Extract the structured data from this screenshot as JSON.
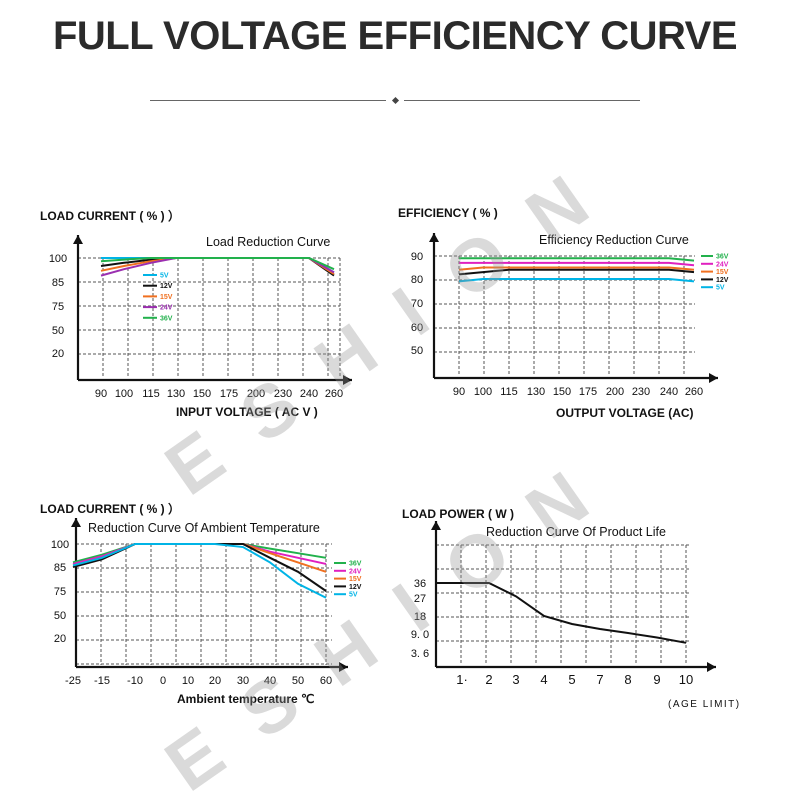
{
  "page": {
    "title": "FULL VOLTAGE EFFICIENCY CURVE",
    "watermark": "ESHION"
  },
  "chart_data": [
    {
      "type": "line",
      "title": "Load Reduction Curve",
      "ylabel": "LOAD CURRENT ( % ) ）",
      "xlabel": "INPUT VOLTAGE ( AC  V )",
      "x_ticks": [
        "90",
        "100",
        "115",
        "130",
        "150",
        "175",
        "200",
        "230",
        "240",
        "260"
      ],
      "y_ticks": [
        "100",
        "85",
        "75",
        "50",
        "20"
      ],
      "grid": true,
      "legend_placement": "inside-left",
      "series": [
        {
          "name": "5V",
          "color": "#00b4e6",
          "values": [
            100,
            100,
            100,
            100,
            100,
            100,
            100,
            100,
            100,
            91
          ]
        },
        {
          "name": "12V",
          "color": "#111111",
          "values": [
            95,
            97,
            99,
            100,
            100,
            100,
            100,
            100,
            100,
            89
          ]
        },
        {
          "name": "15V",
          "color": "#f07020",
          "values": [
            92,
            95,
            98,
            100,
            100,
            100,
            100,
            100,
            100,
            90
          ]
        },
        {
          "name": "24V",
          "color": "#9b2fb0",
          "values": [
            89,
            93,
            97,
            100,
            100,
            100,
            100,
            100,
            100,
            91
          ]
        },
        {
          "name": "36V",
          "color": "#22b14c",
          "values": [
            98,
            99,
            100,
            100,
            100,
            100,
            100,
            100,
            100,
            93
          ]
        }
      ]
    },
    {
      "type": "line",
      "title": "Efficiency Reduction Curve",
      "ylabel": "EFFICIENCY ( % )",
      "xlabel": "OUTPUT VOLTAGE (AC)",
      "x_ticks": [
        "90",
        "100",
        "115",
        "130",
        "150",
        "175",
        "200",
        "230",
        "240",
        "260"
      ],
      "y_ticks": [
        "90",
        "80",
        "70",
        "60",
        "50"
      ],
      "grid": true,
      "legend_placement": "right",
      "series": [
        {
          "name": "36V",
          "color": "#22b14c",
          "values": [
            89,
            89,
            89,
            89,
            89,
            89,
            89,
            89,
            89,
            88
          ]
        },
        {
          "name": "24V",
          "color": "#e020c0",
          "values": [
            87,
            87,
            87,
            87,
            87,
            87,
            87,
            87,
            87,
            86
          ]
        },
        {
          "name": "15V",
          "color": "#f07020",
          "values": [
            84,
            85,
            85,
            85,
            85,
            85,
            85,
            85,
            85,
            84
          ]
        },
        {
          "name": "12V",
          "color": "#111111",
          "values": [
            82,
            83,
            84,
            84,
            84,
            84,
            84,
            84,
            84,
            83
          ]
        },
        {
          "name": "5V",
          "color": "#00b4e6",
          "values": [
            79,
            80,
            80,
            80,
            80,
            80,
            80,
            80,
            80,
            79
          ]
        }
      ]
    },
    {
      "type": "line",
      "title": "Reduction Curve Of Ambient Temperature",
      "ylabel": "LOAD CURRENT ( % ) ）",
      "xlabel": "Ambient temperature ℃",
      "x_ticks": [
        "-25",
        "-15",
        "-10",
        "0",
        "10",
        "20",
        "30",
        "40",
        "50",
        "60"
      ],
      "y_ticks": [
        "100",
        "85",
        "75",
        "50",
        "20"
      ],
      "grid": true,
      "legend_placement": "right",
      "series": [
        {
          "name": "36V",
          "color": "#22b14c",
          "values": [
            88,
            93,
            100,
            100,
            100,
            100,
            100,
            97,
            94,
            91
          ]
        },
        {
          "name": "24V",
          "color": "#e020c0",
          "values": [
            87,
            92,
            100,
            100,
            100,
            100,
            100,
            95,
            91,
            87
          ]
        },
        {
          "name": "15V",
          "color": "#f07020",
          "values": [
            86,
            91,
            100,
            100,
            100,
            100,
            100,
            94,
            88,
            83
          ]
        },
        {
          "name": "12V",
          "color": "#111111",
          "values": [
            85,
            90,
            100,
            100,
            100,
            100,
            100,
            91,
            83,
            75
          ]
        },
        {
          "name": "5V",
          "color": "#00b4e6",
          "values": [
            86,
            91,
            100,
            100,
            100,
            100,
            98,
            88,
            78,
            68
          ]
        }
      ]
    },
    {
      "type": "line",
      "title": "Reduction Curve Of Product Life",
      "ylabel": "LOAD POWER ( W )",
      "xlabel": "(AGE LIMIT)",
      "x_ticks": [
        "1·",
        "2",
        "3",
        "4",
        "5",
        "7",
        "8",
        "9",
        "10"
      ],
      "y_ticks": [
        "36",
        "27",
        "18",
        "9. 0",
        "3. 6"
      ],
      "grid": true,
      "series": [
        {
          "name": "",
          "color": "#111111",
          "values": [
            36,
            36,
            28,
            18,
            14,
            11.5,
            9.5,
            8,
            6.5
          ]
        }
      ]
    }
  ]
}
